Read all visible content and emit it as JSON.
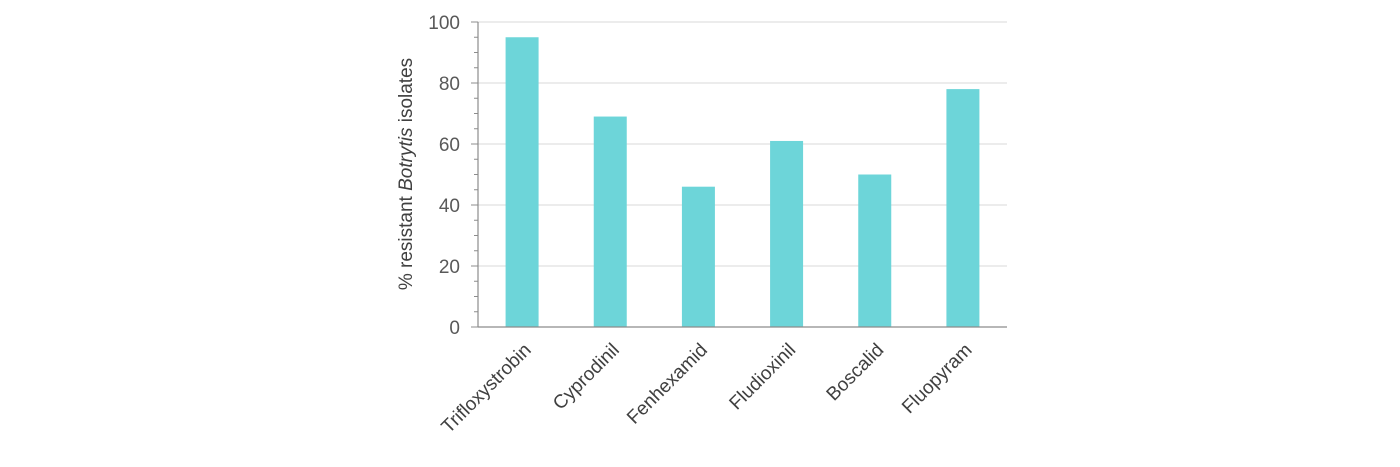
{
  "chart_data": {
    "type": "bar",
    "categories": [
      "Trifloxystrobin",
      "Cyprodinil",
      "Fenhexamid",
      "Fludioxinil",
      "Boscalid",
      "Fluopyram"
    ],
    "values": [
      95,
      69,
      46,
      61,
      50,
      78
    ],
    "ylabel_prefix": "% resistant ",
    "ylabel_italic": "Botrytis",
    "ylabel_suffix": " isolates",
    "ylim": [
      0,
      100
    ],
    "yticks": [
      "0",
      "20",
      "40",
      "60",
      "80",
      "100"
    ],
    "grid": true,
    "bar_color": "#6dd5d9",
    "grid_color": "#d9d9d9",
    "axis_color": "#8c8c8c"
  }
}
